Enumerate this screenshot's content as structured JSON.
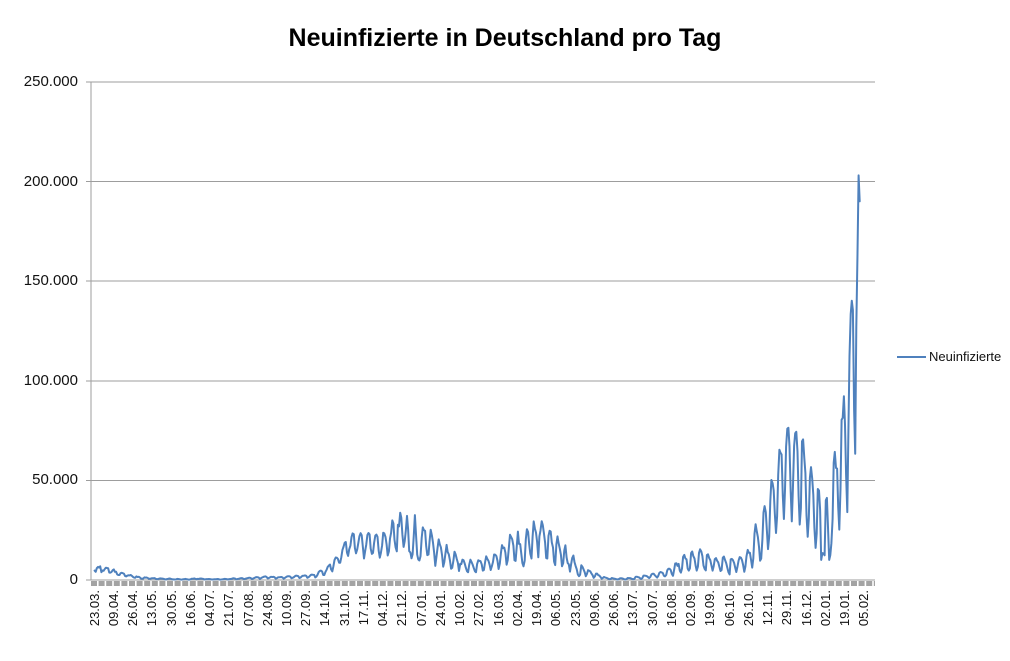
{
  "title": "Neuinfizierte in Deutschland pro Tag",
  "legend": {
    "label": "Neuinfizierte"
  },
  "colors": {
    "series": "#4F81BD",
    "grid": "#9D9D9D",
    "axis": "#9D9D9D",
    "tick_strip": "#A3A3A3",
    "text": "#111111"
  },
  "chart_data": {
    "type": "line",
    "title": "Neuinfizierte in Deutschland pro Tag",
    "xlabel": "",
    "ylabel": "",
    "ylim": [
      0,
      250000
    ],
    "grid": "horizontal",
    "legend_position": "right",
    "y_ticks": [
      {
        "label": "0",
        "value": 0
      },
      {
        "label": "50.000",
        "value": 50000
      },
      {
        "label": "100.000",
        "value": 100000
      },
      {
        "label": "150.000",
        "value": 150000
      },
      {
        "label": "200.000",
        "value": 200000
      },
      {
        "label": "250.000",
        "value": 250000
      }
    ],
    "x_tick_labels": [
      "23.03.",
      "09.04.",
      "26.04.",
      "13.05.",
      "30.05.",
      "16.06.",
      "04.07.",
      "21.07.",
      "07.08.",
      "24.08.",
      "10.09.",
      "27.09.",
      "14.10.",
      "31.10.",
      "17.11.",
      "04.12.",
      "21.12.",
      "07.01.",
      "24.01.",
      "10.02.",
      "27.02.",
      "16.03.",
      "02.04.",
      "19.04.",
      "06.05.",
      "23.05.",
      "09.06.",
      "26.06.",
      "13.07.",
      "30.07.",
      "16.08.",
      "02.09.",
      "19.09.",
      "06.10.",
      "26.10.",
      "12.11.",
      "29.11.",
      "16.12.",
      "02.01.",
      "19.01.",
      "05.02."
    ],
    "x_label_interval": 17,
    "total_categories": 690,
    "series": [
      {
        "name": "Neuinfizierte",
        "color": "#4F81BD",
        "values": [
          4700,
          4100,
          5900,
          6600,
          6200,
          6900,
          3900,
          4750,
          4600,
          5500,
          6150,
          6000,
          5900,
          3700,
          3700,
          4000,
          4900,
          5300,
          4100,
          4100,
          2800,
          2500,
          2500,
          3400,
          3600,
          3400,
          3100,
          2000,
          1800,
          2200,
          2350,
          2300,
          2500,
          2050,
          1500,
          1200,
          1150,
          1800,
          1500,
          1600,
          1300,
          700,
          700,
          700,
          1300,
          1200,
          1250,
          1000,
          600,
          600,
          800,
          900,
          900,
          950,
          600,
          400,
          500,
          650,
          800,
          750,
          700,
          600,
          350,
          300,
          450,
          600,
          750,
          700,
          450,
          300,
          300,
          250,
          350,
          550,
          500,
          400,
          250,
          200,
          350,
          350,
          550,
          450,
          350,
          200,
          200,
          400,
          650,
          600,
          800,
          600,
          400,
          550,
          500,
          700,
          750,
          650,
          550,
          300,
          350,
          450,
          450,
          500,
          450,
          350,
          250,
          300,
          350,
          400,
          450,
          500,
          350,
          200,
          250,
          350,
          450,
          550,
          500,
          400,
          250,
          450,
          500,
          550,
          800,
          850,
          750,
          350,
          450,
          600,
          700,
          900,
          950,
          800,
          400,
          600,
          750,
          900,
          1050,
          1150,
          950,
          500,
          700,
          950,
          1250,
          1450,
          1400,
          1200,
          600,
          900,
          1250,
          1500,
          1700,
          1800,
          1500,
          800,
          1000,
          1300,
          1600,
          1500,
          1600,
          1400,
          700,
          900,
          1300,
          1350,
          1450,
          1500,
          1300,
          700,
          1000,
          1400,
          1750,
          1900,
          1900,
          1600,
          900,
          1100,
          1400,
          1900,
          2200,
          2100,
          1900,
          1000,
          1200,
          1800,
          2100,
          2150,
          2300,
          2100,
          1100,
          1400,
          1900,
          2500,
          2700,
          2600,
          2500,
          1300,
          1700,
          2600,
          4000,
          4500,
          4700,
          4300,
          2500,
          2500,
          4100,
          5100,
          6600,
          7300,
          7800,
          5300,
          4300,
          6900,
          10000,
          11300,
          11200,
          10600,
          8700,
          8700,
          11400,
          15000,
          16800,
          18700,
          19100,
          13700,
          12100,
          15400,
          17200,
          21500,
          23400,
          23000,
          16000,
          13400,
          15300,
          18500,
          21900,
          23500,
          22500,
          16900,
          10800,
          14400,
          17600,
          22600,
          23600,
          22900,
          15700,
          13100,
          13600,
          18600,
          22300,
          22800,
          21700,
          14600,
          11200,
          13600,
          17300,
          23700,
          23400,
          21600,
          17800,
          12300,
          14400,
          20800,
          23700,
          29900,
          28400,
          20200,
          16400,
          14400,
          27700,
          26900,
          33800,
          31300,
          22800,
          16600,
          19500,
          24700,
          32200,
          25500,
          14500,
          13800,
          10900,
          12900,
          22500,
          32600,
          22900,
          12700,
          10300,
          9800,
          11900,
          21200,
          26400,
          25100,
          24700,
          16900,
          12500,
          12800,
          19600,
          25200,
          22400,
          18700,
          13900,
          7100,
          11400,
          15900,
          20400,
          17900,
          16400,
          12300,
          6700,
          9000,
          13200,
          17600,
          14000,
          12900,
          9700,
          5600,
          6100,
          9700,
          14200,
          12900,
          10500,
          8600,
          4500,
          8100,
          8000,
          10200,
          9900,
          8300,
          6200,
          4400,
          3900,
          7600,
          10200,
          9100,
          7800,
          6100,
          4400,
          3900,
          8000,
          9900,
          9600,
          9500,
          7900,
          4700,
          5000,
          9000,
          11900,
          10600,
          9600,
          7700,
          5000,
          7000,
          9100,
          12800,
          12700,
          12000,
          9600,
          5500,
          8200,
          13400,
          17500,
          16000,
          16200,
          13700,
          7700,
          9900,
          15800,
          22700,
          21600,
          20500,
          17200,
          9900,
          9600,
          17100,
          24300,
          18100,
          18000,
          13200,
          8500,
          6900,
          9700,
          20400,
          25500,
          24100,
          17900,
          13200,
          10800,
          21700,
          29400,
          25800,
          23800,
          19200,
          11400,
          21900,
          24900,
          29500,
          27500,
          23600,
          18800,
          11000,
          10800,
          22200,
          24700,
          24300,
          18900,
          16300,
          9200,
          7500,
          18000,
          21900,
          18500,
          15700,
          12700,
          6900,
          8500,
          14900,
          17400,
          11300,
          8500,
          7900,
          4200,
          7900,
          11000,
          12300,
          9000,
          7100,
          5400,
          2700,
          1900,
          2600,
          7400,
          6700,
          5400,
          3900,
          1900,
          3000,
          4900,
          4600,
          4300,
          3200,
          2400,
          1100,
          1800,
          3200,
          3200,
          2400,
          2200,
          1500,
          700,
          1000,
          1500,
          1300,
          1100,
          900,
          600,
          350,
          500,
          1000,
          800,
          700,
          600,
          400,
          250,
          400,
          800,
          900,
          800,
          650,
          350,
          250,
          450,
          1000,
          970,
          950,
          750,
          500,
          350,
          650,
          1550,
          1650,
          1450,
          1300,
          850,
          550,
          1000,
          2200,
          2200,
          2100,
          1900,
          1400,
          950,
          1550,
          2800,
          3100,
          3100,
          2400,
          1800,
          1200,
          2000,
          3600,
          4000,
          3800,
          3500,
          2100,
          1800,
          2500,
          4900,
          5600,
          5600,
          5000,
          3100,
          2100,
          5000,
          8300,
          8400,
          7100,
          8100,
          4700,
          3700,
          5700,
          11600,
          12600,
          10800,
          10400,
          5700,
          4700,
          5800,
          13500,
          14300,
          12000,
          10800,
          7300,
          4700,
          6700,
          13600,
          15400,
          14300,
          12000,
          7300,
          5500,
          4800,
          12500,
          12900,
          11000,
          10000,
          7400,
          4700,
          7000,
          10500,
          11000,
          9700,
          8900,
          6600,
          4500,
          5000,
          11200,
          11800,
          10100,
          8500,
          6200,
          4000,
          2800,
          10400,
          10600,
          10000,
          8600,
          6200,
          4000,
          6800,
          9800,
          11500,
          11200,
          10000,
          7600,
          4100,
          6800,
          11900,
          15100,
          13700,
          13700,
          10000,
          6200,
          10800,
          23200,
          28000,
          24700,
          21500,
          16700,
          9700,
          10800,
          20400,
          33900,
          37100,
          34000,
          24700,
          15500,
          21800,
          39700,
          50200,
          48600,
          45000,
          33500,
          23600,
          32000,
          52800,
          65400,
          63900,
          63000,
          42300,
          30600,
          45300,
          66900,
          75900,
          76400,
          67100,
          44400,
          29400,
          45700,
          67200,
          73700,
          74400,
          64500,
          42100,
          27800,
          36100,
          69600,
          70600,
          61300,
          53700,
          32600,
          21700,
          30800,
          51300,
          56700,
          50900,
          42800,
          26100,
          16100,
          23400,
          45700,
          44900,
          35400,
          10100,
          13500,
          13300,
          12400,
          40000,
          41200,
          26400,
          10100,
          12500,
          18500,
          30600,
          58900,
          64300,
          56300,
          55900,
          36600,
          25300,
          45700,
          80400,
          81400,
          92200,
          78000,
          52500,
          34100,
          74400,
          112300,
          133500,
          140200,
          135500,
          85400,
          63400,
          126900,
          164000,
          203100,
          190100
        ]
      }
    ]
  }
}
